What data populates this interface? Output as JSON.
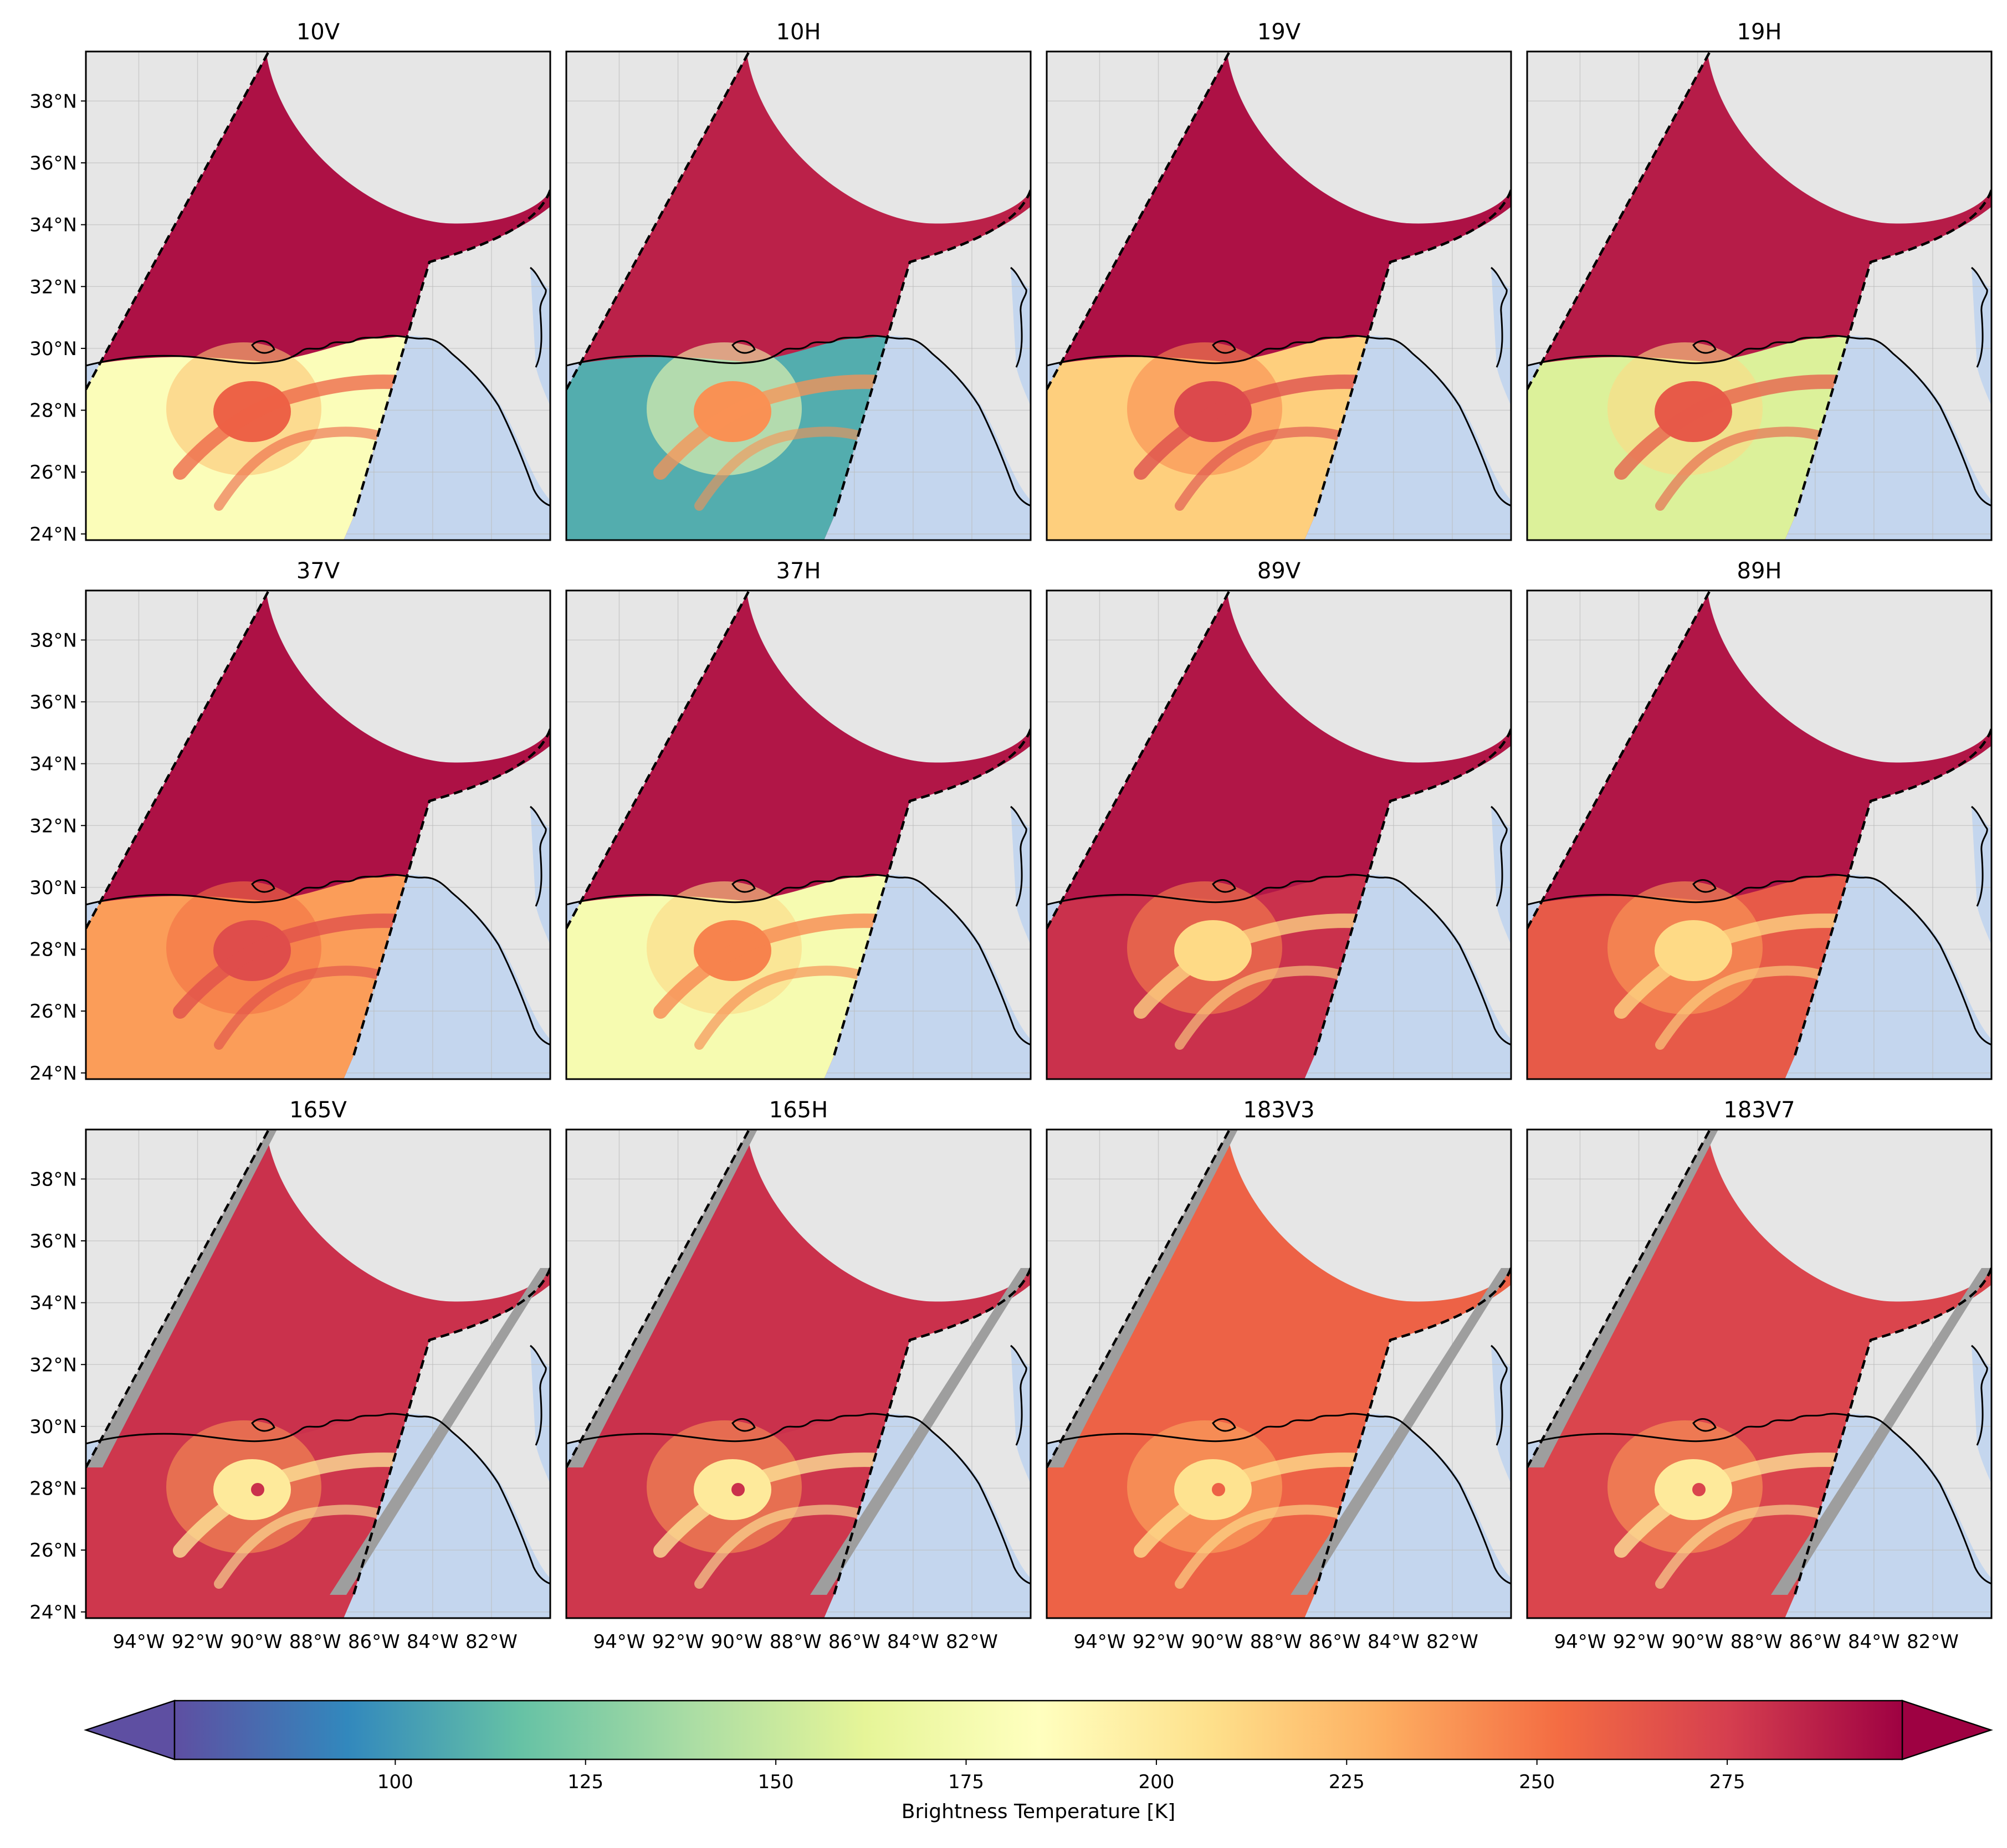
{
  "panels": [
    "10V",
    "10H",
    "19V",
    "19H",
    "37V",
    "37H",
    "89V",
    "89H",
    "165V",
    "165H",
    "183V3",
    "183V7"
  ],
  "lat_ticks": [
    "38°N",
    "36°N",
    "34°N",
    "32°N",
    "30°N",
    "28°N",
    "26°N",
    "24°N"
  ],
  "lon_ticks": [
    "94°W",
    "92°W",
    "90°W",
    "88°W",
    "86°W",
    "84°W",
    "82°W"
  ],
  "lat_values": [
    38,
    36,
    34,
    32,
    30,
    28,
    26,
    24
  ],
  "lon_values": [
    94,
    92,
    90,
    88,
    86,
    84,
    82
  ],
  "colorbar": {
    "label": "Brightness Temperature [K]",
    "ticks": [
      "100",
      "125",
      "150",
      "175",
      "200",
      "225",
      "250",
      "275"
    ],
    "tick_values": [
      100,
      125,
      150,
      175,
      200,
      225,
      250,
      275
    ],
    "range": [
      71,
      298
    ],
    "extend": "both",
    "colormap": "Spectral_r"
  },
  "colors": {
    "land": "#e6e6e6",
    "ocean": "#c4d6ee",
    "swath_edge": "#000000",
    "missing_edge_band": "#9e9e9e"
  },
  "panel_fields": [
    {
      "land_K": 292,
      "ocean_K": 181,
      "storm_K": 258
    },
    {
      "land_K": 286,
      "ocean_K": 108,
      "storm_K": 240
    },
    {
      "land_K": 292,
      "ocean_K": 215,
      "storm_K": 270
    },
    {
      "land_K": 288,
      "ocean_K": 158,
      "storm_K": 262
    },
    {
      "land_K": 292,
      "ocean_K": 236,
      "storm_K": 268
    },
    {
      "land_K": 290,
      "ocean_K": 176,
      "storm_K": 245
    },
    {
      "land_K": 290,
      "ocean_K": 280,
      "storm_K": 210
    },
    {
      "land_K": 290,
      "ocean_K": 262,
      "storm_K": 210
    },
    {
      "land_K": 280,
      "ocean_K": 278,
      "storm_K": 200
    },
    {
      "land_K": 280,
      "ocean_K": 278,
      "storm_K": 200
    },
    {
      "land_K": 258,
      "ocean_K": 258,
      "storm_K": 205
    },
    {
      "land_K": 272,
      "ocean_K": 272,
      "storm_K": 200
    }
  ]
}
